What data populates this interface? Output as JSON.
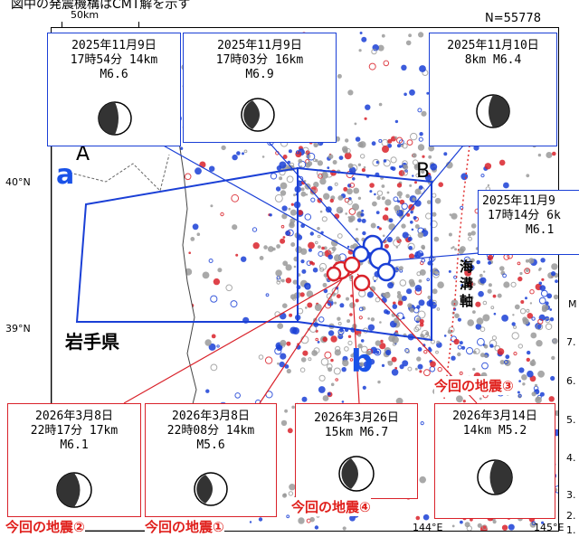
{
  "caption": "図中の発震機構はCMT解を示す",
  "count": "N=55778",
  "scale": "50km",
  "lat_ticks": [
    "40°N",
    "39°N"
  ],
  "lon_ticks": [
    "144°E",
    "145°E"
  ],
  "right_edge_ticks": [
    "7.",
    "6.",
    "5.",
    "4.",
    "3.",
    "2.",
    "1.",
    "M"
  ],
  "prefecture": "岩手県",
  "trench": [
    "海",
    "溝",
    "軸"
  ],
  "section_labels": {
    "a": "a",
    "b": "b",
    "A": "A",
    "B": "B"
  },
  "colors": {
    "blue": "#1a3fd6",
    "red": "#d9222a",
    "gray": "#9a9a9a"
  },
  "boxes": [
    {
      "id": "m66",
      "lines": [
        "2025年11月9日",
        "17時54分 14km",
        "M6.6"
      ],
      "color": "blue"
    },
    {
      "id": "m69",
      "lines": [
        "2025年11月9日",
        "17時03分 16km",
        "M6.9"
      ],
      "color": "blue"
    },
    {
      "id": "m64",
      "lines": [
        "2025年11月10日",
        "8km  M6.4",
        ""
      ],
      "color": "blue"
    },
    {
      "id": "m61a",
      "lines": [
        "2025年11月9",
        "17時14分 6k",
        "M6.1"
      ],
      "color": "blue"
    },
    {
      "id": "q2",
      "lines": [
        "2026年3月8日",
        "22時17分 17km",
        "M6.1"
      ],
      "color": "red"
    },
    {
      "id": "q1",
      "lines": [
        "2026年3月8日",
        "22時08分 14km",
        "M5.6"
      ],
      "color": "red"
    },
    {
      "id": "q4",
      "lines": [
        "2026年3月26日",
        "15km  M6.7",
        ""
      ],
      "color": "red"
    },
    {
      "id": "q3",
      "lines": [
        "2026年3月14日",
        "14km  M5.2",
        ""
      ],
      "color": "red"
    }
  ],
  "quake_labels": {
    "q1": "今回の地震①",
    "q2": "今回の地震②",
    "q3": "今回の地震③",
    "q4": "今回の地震④"
  }
}
